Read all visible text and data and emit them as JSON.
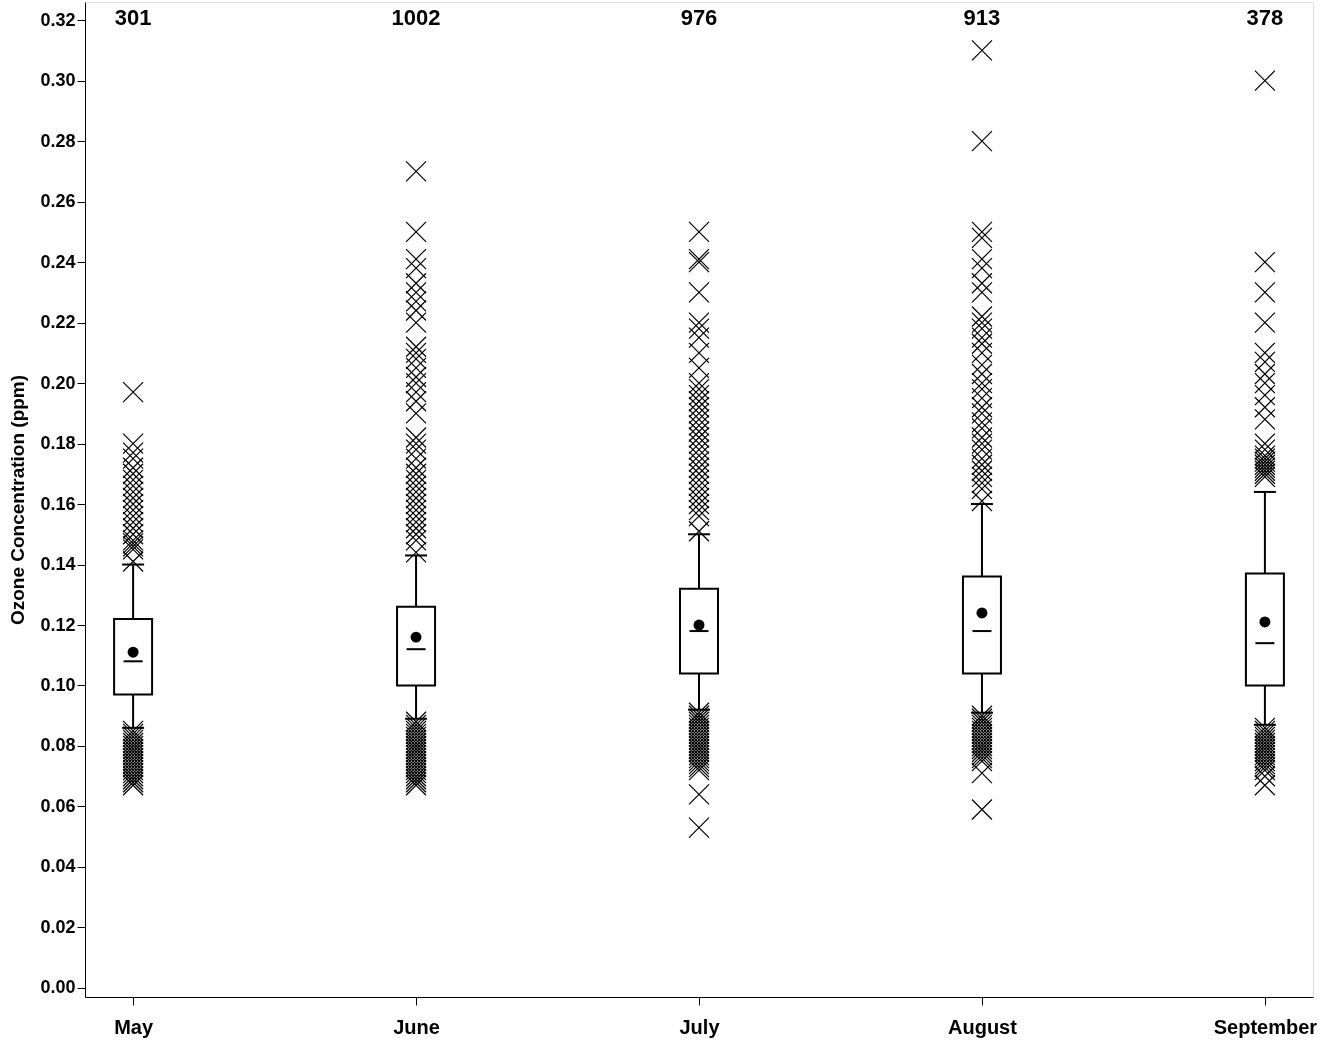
{
  "chart_data": {
    "type": "box",
    "ylabel": "Ozone Concentration (ppm)",
    "categories": [
      "May",
      "June",
      "July",
      "August",
      "September"
    ],
    "ylim": [
      -0.003,
      0.326
    ],
    "yticks": [
      {
        "value": 0,
        "label": "0.00"
      },
      {
        "value": 0.02,
        "label": "0.02"
      },
      {
        "value": 0.04,
        "label": "0.04"
      },
      {
        "value": 0.06,
        "label": "0.06"
      },
      {
        "value": 0.08,
        "label": "0.08"
      },
      {
        "value": 0.1,
        "label": "0.10"
      },
      {
        "value": 0.12,
        "label": "0.12"
      },
      {
        "value": 0.14,
        "label": "0.14"
      },
      {
        "value": 0.16,
        "label": "0.16"
      },
      {
        "value": 0.18,
        "label": "0.18"
      },
      {
        "value": 0.2,
        "label": "0.20"
      },
      {
        "value": 0.22,
        "label": "0.22"
      },
      {
        "value": 0.24,
        "label": "0.24"
      },
      {
        "value": 0.26,
        "label": "0.26"
      },
      {
        "value": 0.28,
        "label": "0.28"
      },
      {
        "value": 0.3,
        "label": "0.30"
      },
      {
        "value": 0.32,
        "label": "0.32"
      }
    ],
    "grid": false,
    "marker": "cross",
    "boxes": [
      {
        "low": 0.086,
        "q1": 0.097,
        "median": 0.108,
        "q3": 0.122,
        "high": 0.14,
        "mean": 0.111,
        "outliers": [
          0.197,
          0.18,
          0.177,
          0.175,
          0.172,
          0.17,
          0.168,
          0.166,
          0.164,
          0.162,
          0.16,
          0.158,
          0.156,
          0.154,
          0.152,
          0.15,
          0.148,
          0.147,
          0.146,
          0.145,
          0.141,
          0.085,
          0.084,
          0.083,
          0.082,
          0.081,
          0.08,
          0.079,
          0.078,
          0.077,
          0.076,
          0.075,
          0.074,
          0.073,
          0.072,
          0.071,
          0.07,
          0.069,
          0.068,
          0.067
        ]
      },
      {
        "low": 0.089,
        "q1": 0.1,
        "median": 0.112,
        "q3": 0.126,
        "high": 0.143,
        "mean": 0.116,
        "outliers": [
          0.27,
          0.25,
          0.241,
          0.238,
          0.233,
          0.23,
          0.227,
          0.224,
          0.22,
          0.212,
          0.21,
          0.208,
          0.205,
          0.202,
          0.2,
          0.197,
          0.194,
          0.19,
          0.182,
          0.18,
          0.178,
          0.175,
          0.172,
          0.17,
          0.168,
          0.166,
          0.164,
          0.162,
          0.16,
          0.158,
          0.156,
          0.154,
          0.152,
          0.15,
          0.148,
          0.144,
          0.088,
          0.087,
          0.086,
          0.085,
          0.084,
          0.083,
          0.082,
          0.081,
          0.08,
          0.079,
          0.078,
          0.077,
          0.076,
          0.075,
          0.074,
          0.073,
          0.072,
          0.071,
          0.07,
          0.069,
          0.068,
          0.067
        ]
      },
      {
        "low": 0.092,
        "q1": 0.104,
        "median": 0.118,
        "q3": 0.132,
        "high": 0.15,
        "mean": 0.12,
        "outliers": [
          0.25,
          0.241,
          0.24,
          0.23,
          0.22,
          0.218,
          0.215,
          0.21,
          0.205,
          0.2,
          0.198,
          0.196,
          0.194,
          0.192,
          0.19,
          0.188,
          0.186,
          0.184,
          0.182,
          0.18,
          0.178,
          0.176,
          0.174,
          0.172,
          0.17,
          0.168,
          0.166,
          0.164,
          0.162,
          0.16,
          0.158,
          0.156,
          0.151,
          0.091,
          0.09,
          0.089,
          0.088,
          0.087,
          0.086,
          0.085,
          0.084,
          0.083,
          0.082,
          0.081,
          0.08,
          0.079,
          0.078,
          0.077,
          0.076,
          0.075,
          0.074,
          0.073,
          0.072,
          0.064,
          0.053
        ]
      },
      {
        "low": 0.091,
        "q1": 0.104,
        "median": 0.118,
        "q3": 0.136,
        "high": 0.16,
        "mean": 0.124,
        "outliers": [
          0.31,
          0.28,
          0.25,
          0.248,
          0.241,
          0.238,
          0.233,
          0.23,
          0.222,
          0.22,
          0.218,
          0.215,
          0.213,
          0.21,
          0.206,
          0.203,
          0.2,
          0.198,
          0.195,
          0.192,
          0.19,
          0.187,
          0.185,
          0.182,
          0.18,
          0.178,
          0.175,
          0.173,
          0.171,
          0.169,
          0.167,
          0.165,
          0.161,
          0.09,
          0.089,
          0.088,
          0.087,
          0.086,
          0.085,
          0.084,
          0.083,
          0.082,
          0.081,
          0.08,
          0.079,
          0.078,
          0.077,
          0.076,
          0.075,
          0.071,
          0.059
        ]
      },
      {
        "low": 0.087,
        "q1": 0.1,
        "median": 0.114,
        "q3": 0.137,
        "high": 0.164,
        "mean": 0.121,
        "outliers": [
          0.3,
          0.24,
          0.23,
          0.22,
          0.21,
          0.207,
          0.203,
          0.2,
          0.196,
          0.192,
          0.188,
          0.18,
          0.178,
          0.176,
          0.175,
          0.174,
          0.173,
          0.172,
          0.171,
          0.17,
          0.169,
          0.086,
          0.085,
          0.084,
          0.083,
          0.082,
          0.081,
          0.08,
          0.079,
          0.078,
          0.077,
          0.076,
          0.075,
          0.074,
          0.073,
          0.072,
          0.07,
          0.067
        ]
      }
    ],
    "annotations": [
      "301",
      "1002",
      "976",
      "913",
      "378"
    ]
  }
}
